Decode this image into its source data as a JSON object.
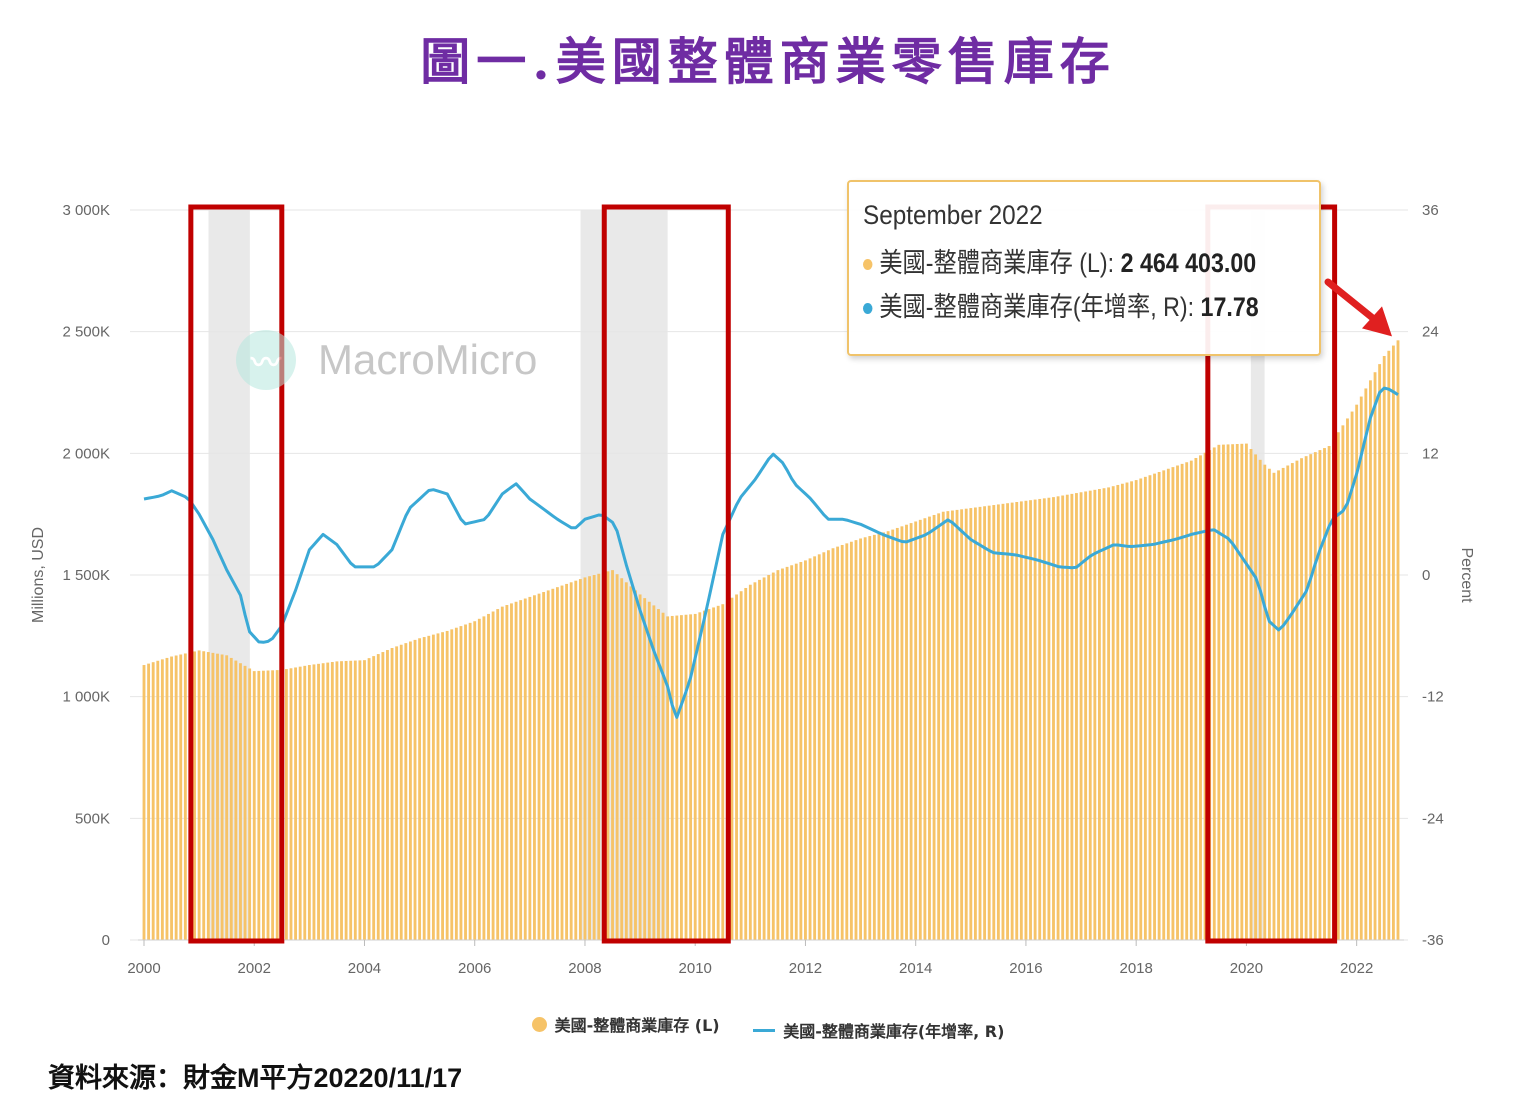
{
  "figure_title": "圖一.美國整體商業零售庫存",
  "source_note": "資料來源：財金M平方20220/11/17",
  "watermark": "MacroMicro",
  "colors": {
    "title": "#6f2ca3",
    "bars": "#f6c368",
    "line": "#3aa9d6",
    "highlight_box": "#c00000",
    "arrow": "#e02020",
    "recession": "#e9e9e9"
  },
  "tooltip": {
    "date": "September 2022",
    "rows": [
      {
        "label": "美國-整體商業庫存 (L):",
        "value": "2 464 403.00",
        "color": "#f6c368"
      },
      {
        "label": "美國-整體商業庫存(年增率, R):",
        "value": "17.78",
        "color": "#3aa9d6"
      }
    ]
  },
  "legend": [
    {
      "label": "美國-整體商業庫存 (L)",
      "kind": "dot"
    },
    {
      "label": "美國-整體商業庫存(年增率, R)",
      "kind": "line"
    }
  ],
  "chart_data": {
    "type": "bar+line",
    "ylabel_left": "Millions, USD",
    "ylabel_right": "Percent",
    "y_left_ticks": [
      "0",
      "500K",
      "1 000K",
      "1 500K",
      "2 000K",
      "2 500K",
      "3 000K"
    ],
    "y_left_lim": [
      0,
      3000000
    ],
    "y_right_ticks": [
      "-36",
      "-24",
      "-12",
      "0",
      "12",
      "24",
      "36"
    ],
    "y_right_lim": [
      -36,
      36
    ],
    "x_ticks": [
      "2000",
      "2002",
      "2004",
      "2006",
      "2008",
      "2010",
      "2012",
      "2014",
      "2016",
      "2018",
      "2020",
      "2022"
    ],
    "x_range": [
      2000.0,
      2022.75
    ],
    "recession_periods": [
      [
        2001.17,
        2001.92
      ],
      [
        2007.92,
        2009.5
      ],
      [
        2020.08,
        2020.33
      ]
    ],
    "highlight_periods": [
      [
        2000.85,
        2002.5
      ],
      [
        2008.35,
        2010.6
      ],
      [
        2019.3,
        2021.6
      ]
    ],
    "series": [
      {
        "name": "美國-整體商業庫存 (L)",
        "kind": "bar",
        "points": [
          [
            2000.0,
            1130000
          ],
          [
            2000.5,
            1165000
          ],
          [
            2001.0,
            1190000
          ],
          [
            2001.5,
            1170000
          ],
          [
            2002.0,
            1105000
          ],
          [
            2002.5,
            1110000
          ],
          [
            2003.0,
            1130000
          ],
          [
            2003.5,
            1145000
          ],
          [
            2004.0,
            1150000
          ],
          [
            2004.5,
            1200000
          ],
          [
            2005.0,
            1240000
          ],
          [
            2005.5,
            1270000
          ],
          [
            2006.0,
            1310000
          ],
          [
            2006.5,
            1370000
          ],
          [
            2007.0,
            1410000
          ],
          [
            2007.5,
            1450000
          ],
          [
            2008.0,
            1490000
          ],
          [
            2008.5,
            1520000
          ],
          [
            2009.0,
            1420000
          ],
          [
            2009.5,
            1330000
          ],
          [
            2010.0,
            1340000
          ],
          [
            2010.5,
            1380000
          ],
          [
            2011.0,
            1460000
          ],
          [
            2011.5,
            1520000
          ],
          [
            2012.0,
            1560000
          ],
          [
            2012.5,
            1610000
          ],
          [
            2013.0,
            1650000
          ],
          [
            2013.5,
            1680000
          ],
          [
            2014.0,
            1720000
          ],
          [
            2014.5,
            1760000
          ],
          [
            2015.0,
            1775000
          ],
          [
            2015.5,
            1790000
          ],
          [
            2016.0,
            1805000
          ],
          [
            2016.5,
            1820000
          ],
          [
            2017.0,
            1840000
          ],
          [
            2017.5,
            1860000
          ],
          [
            2018.0,
            1890000
          ],
          [
            2018.5,
            1930000
          ],
          [
            2019.0,
            1970000
          ],
          [
            2019.5,
            2035000
          ],
          [
            2020.0,
            2040000
          ],
          [
            2020.3,
            1960000
          ],
          [
            2020.5,
            1920000
          ],
          [
            2021.0,
            1980000
          ],
          [
            2021.5,
            2030000
          ],
          [
            2022.0,
            2200000
          ],
          [
            2022.5,
            2400000
          ],
          [
            2022.75,
            2464403
          ]
        ]
      },
      {
        "name": "美國-整體商業庫存(年增率, R)",
        "kind": "line",
        "points": [
          [
            2000.0,
            7.5
          ],
          [
            2000.3,
            7.8
          ],
          [
            2000.5,
            8.3
          ],
          [
            2000.8,
            7.6
          ],
          [
            2001.0,
            6.0
          ],
          [
            2001.25,
            3.5
          ],
          [
            2001.5,
            0.5
          ],
          [
            2001.75,
            -2.0
          ],
          [
            2001.9,
            -5.5
          ],
          [
            2002.1,
            -6.7
          ],
          [
            2002.3,
            -6.5
          ],
          [
            2002.5,
            -5.0
          ],
          [
            2002.75,
            -1.5
          ],
          [
            2003.0,
            2.5
          ],
          [
            2003.25,
            4.0
          ],
          [
            2003.5,
            3.0
          ],
          [
            2003.8,
            0.8
          ],
          [
            2004.2,
            0.8
          ],
          [
            2004.5,
            2.5
          ],
          [
            2004.8,
            6.5
          ],
          [
            2005.2,
            8.5
          ],
          [
            2005.5,
            8.0
          ],
          [
            2005.8,
            5.0
          ],
          [
            2006.2,
            5.5
          ],
          [
            2006.5,
            8.0
          ],
          [
            2006.75,
            9.0
          ],
          [
            2007.0,
            7.5
          ],
          [
            2007.5,
            5.5
          ],
          [
            2007.8,
            4.5
          ],
          [
            2008.0,
            5.5
          ],
          [
            2008.3,
            6.0
          ],
          [
            2008.55,
            5.0
          ],
          [
            2008.75,
            1.0
          ],
          [
            2009.0,
            -3.5
          ],
          [
            2009.25,
            -7.5
          ],
          [
            2009.5,
            -11.0
          ],
          [
            2009.65,
            -14.3
          ],
          [
            2009.9,
            -10.5
          ],
          [
            2010.2,
            -3.5
          ],
          [
            2010.5,
            4.0
          ],
          [
            2010.8,
            7.5
          ],
          [
            2011.1,
            9.5
          ],
          [
            2011.4,
            12.0
          ],
          [
            2011.6,
            11.0
          ],
          [
            2011.8,
            9.0
          ],
          [
            2012.1,
            7.5
          ],
          [
            2012.4,
            5.5
          ],
          [
            2012.7,
            5.5
          ],
          [
            2013.0,
            5.0
          ],
          [
            2013.4,
            4.0
          ],
          [
            2013.8,
            3.2
          ],
          [
            2014.2,
            4.0
          ],
          [
            2014.6,
            5.5
          ],
          [
            2015.0,
            3.5
          ],
          [
            2015.4,
            2.2
          ],
          [
            2015.8,
            2.0
          ],
          [
            2016.2,
            1.5
          ],
          [
            2016.6,
            0.8
          ],
          [
            2016.9,
            0.7
          ],
          [
            2017.2,
            2.0
          ],
          [
            2017.6,
            3.0
          ],
          [
            2017.9,
            2.8
          ],
          [
            2018.3,
            3.0
          ],
          [
            2018.7,
            3.5
          ],
          [
            2019.0,
            4.0
          ],
          [
            2019.4,
            4.5
          ],
          [
            2019.7,
            3.5
          ],
          [
            2019.95,
            1.5
          ],
          [
            2020.2,
            -0.5
          ],
          [
            2020.4,
            -4.5
          ],
          [
            2020.6,
            -5.5
          ],
          [
            2020.8,
            -4.0
          ],
          [
            2021.1,
            -1.5
          ],
          [
            2021.3,
            2.0
          ],
          [
            2021.55,
            5.5
          ],
          [
            2021.8,
            6.5
          ],
          [
            2022.0,
            10.0
          ],
          [
            2022.25,
            15.5
          ],
          [
            2022.45,
            18.5
          ],
          [
            2022.6,
            18.3
          ],
          [
            2022.75,
            17.78
          ]
        ]
      }
    ]
  }
}
